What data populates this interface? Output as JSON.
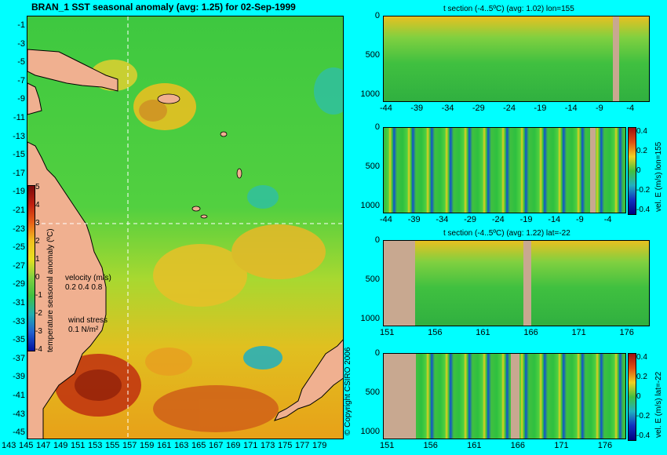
{
  "main": {
    "title": "BRAN_1  SST seasonal anomaly (avg: 1.25) for 02-Sep-1999",
    "lat_ticks": [
      "-1",
      "-3",
      "-5",
      "-7",
      "-9",
      "-11",
      "-13",
      "-15",
      "-17",
      "-19",
      "-21",
      "-23",
      "-25",
      "-27",
      "-29",
      "-31",
      "-33",
      "-35",
      "-37",
      "-39",
      "-41",
      "-43",
      "-45"
    ],
    "lon_ticks": [
      "143",
      "145",
      "147",
      "149",
      "151",
      "153",
      "155",
      "157",
      "159",
      "161",
      "163",
      "165",
      "167",
      "169",
      "171",
      "173",
      "175",
      "177",
      "179"
    ],
    "colorbar_ticks": [
      "5",
      "4",
      "3",
      "2",
      "1",
      "0",
      "-1",
      "-2",
      "-3",
      "-4"
    ],
    "colorbar_label": "temperature seasonal anomaly (ºC)",
    "velocity_label": "velocity (m/s)",
    "velocity_scale": "0.2 0.4 0.8",
    "wind_label": "wind stress",
    "wind_scale": "0.1 N/m²",
    "copyright": "© Copyright CSIRO 2006"
  },
  "sections": [
    {
      "title": "t section (-4..5ºC) (avg: 1.02) lon=155",
      "x_ticks": [
        "-44",
        "-39",
        "-34",
        "-29",
        "-24",
        "-19",
        "-14",
        "-9",
        "-4"
      ],
      "y_ticks": [
        "0",
        "500",
        "1000"
      ]
    },
    {
      "title": "",
      "x_ticks": [
        "-44",
        "-39",
        "-34",
        "-29",
        "-24",
        "-19",
        "-14",
        "-9",
        "-4"
      ],
      "y_ticks": [
        "0",
        "500",
        "1000"
      ],
      "cb_ticks": [
        "0.4",
        "0.2",
        "0",
        "-0.2",
        "-0.4"
      ],
      "cb_label": "vel. E (m/s) lon=155"
    },
    {
      "title": "t section (-4..5ºC) (avg: 1.22) lat=-22",
      "x_ticks": [
        "151",
        "156",
        "161",
        "166",
        "171",
        "176"
      ],
      "y_ticks": [
        "0",
        "500",
        "1000"
      ]
    },
    {
      "title": "",
      "x_ticks": [
        "151",
        "156",
        "161",
        "166",
        "171",
        "176"
      ],
      "y_ticks": [
        "0",
        "500",
        "1000"
      ],
      "cb_ticks": [
        "0.4",
        "0.2",
        "0",
        "-0.2",
        "-0.4"
      ],
      "cb_label": "vel. E (m/s) lat=-22"
    }
  ],
  "colors": {
    "background": "#00ffff",
    "land": "#d4a98c",
    "ocean_base": "#4fd24a",
    "warm": "#e6a020",
    "hot": "#b02010",
    "cool": "#20b0c0"
  }
}
